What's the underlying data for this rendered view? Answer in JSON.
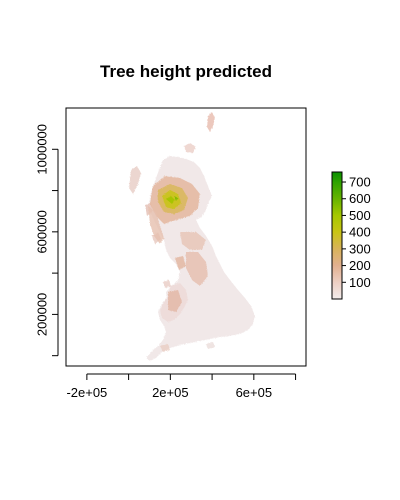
{
  "chart_data": {
    "type": "heatmap",
    "title": "Tree height predicted",
    "xlabel": "",
    "ylabel": "",
    "xlim": [
      -300000,
      850000
    ],
    "ylim": [
      -50000,
      1200000
    ],
    "x_ticks": [
      {
        "value": -200000,
        "label": "-2e+05"
      },
      {
        "value": 0,
        "label": ""
      },
      {
        "value": 200000,
        "label": "2e+05"
      },
      {
        "value": 400000,
        "label": ""
      },
      {
        "value": 600000,
        "label": "6e+05"
      },
      {
        "value": 800000,
        "label": ""
      }
    ],
    "y_ticks": [
      {
        "value": 0,
        "label": ""
      },
      {
        "value": 200000,
        "label": "200000"
      },
      {
        "value": 400000,
        "label": ""
      },
      {
        "value": 600000,
        "label": "600000"
      },
      {
        "value": 800000,
        "label": ""
      },
      {
        "value": 1000000,
        "label": "1000000"
      }
    ],
    "legend": {
      "placement": "right",
      "min": 0,
      "max": 760,
      "ticks": [
        {
          "value": 100,
          "label": "100"
        },
        {
          "value": 200,
          "label": "200"
        },
        {
          "value": 300,
          "label": "300"
        },
        {
          "value": 400,
          "label": "400"
        },
        {
          "value": 500,
          "label": "500"
        },
        {
          "value": 600,
          "label": "600"
        },
        {
          "value": 700,
          "label": "700"
        }
      ],
      "color_stops": [
        {
          "value": 0,
          "color": "#f2ecec"
        },
        {
          "value": 100,
          "color": "#edcfc3"
        },
        {
          "value": 200,
          "color": "#e2b08f"
        },
        {
          "value": 300,
          "color": "#d8b35a"
        },
        {
          "value": 400,
          "color": "#c9c415"
        },
        {
          "value": 500,
          "color": "#a6c800"
        },
        {
          "value": 600,
          "color": "#66b300"
        },
        {
          "value": 700,
          "color": "#2ea200"
        },
        {
          "value": 760,
          "color": "#0a8f00"
        }
      ]
    },
    "grid": false
  }
}
